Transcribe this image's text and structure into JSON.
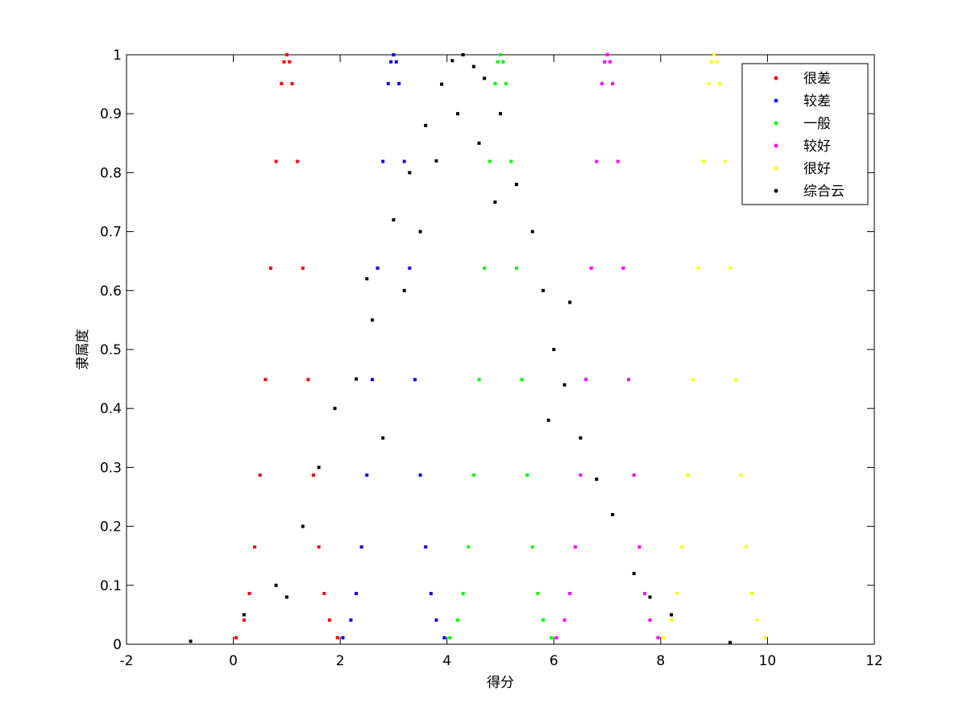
{
  "chart_data": {
    "type": "scatter",
    "xlabel": "得分",
    "ylabel": "隶属度",
    "xlim": [
      -2,
      12
    ],
    "ylim": [
      0,
      1
    ],
    "xticks": [
      -2,
      0,
      2,
      4,
      6,
      8,
      10,
      12
    ],
    "yticks": [
      0,
      0.1,
      0.2,
      0.3,
      0.4,
      0.5,
      0.6,
      0.7,
      0.8,
      0.9,
      1
    ],
    "legend": "upper right",
    "series": [
      {
        "name": "很差",
        "color": "#ff0000",
        "x": [
          0.05,
          0.2,
          0.3,
          0.4,
          0.5,
          0.6,
          0.7,
          0.8,
          0.9,
          0.95,
          1,
          1.05,
          1.1,
          1.2,
          1.3,
          1.4,
          1.5,
          1.6,
          1.7,
          1.8,
          1.95
        ],
        "values": [
          0.011,
          0.041,
          0.086,
          0.165,
          0.287,
          0.449,
          0.638,
          0.819,
          0.951,
          0.988,
          1,
          0.988,
          0.951,
          0.819,
          0.638,
          0.449,
          0.287,
          0.165,
          0.086,
          0.041,
          0.011
        ]
      },
      {
        "name": "较差",
        "color": "#0000ff",
        "x": [
          2.05,
          2.2,
          2.3,
          2.4,
          2.5,
          2.6,
          2.7,
          2.8,
          2.9,
          2.95,
          3,
          3.05,
          3.1,
          3.2,
          3.3,
          3.4,
          3.5,
          3.6,
          3.7,
          3.8,
          3.95
        ],
        "values": [
          0.011,
          0.041,
          0.086,
          0.165,
          0.287,
          0.449,
          0.638,
          0.819,
          0.951,
          0.988,
          1,
          0.988,
          0.951,
          0.819,
          0.638,
          0.449,
          0.287,
          0.165,
          0.086,
          0.041,
          0.011
        ]
      },
      {
        "name": "一般",
        "color": "#00ff00",
        "x": [
          4.05,
          4.2,
          4.3,
          4.4,
          4.5,
          4.6,
          4.7,
          4.8,
          4.9,
          4.95,
          5,
          5.05,
          5.1,
          5.2,
          5.3,
          5.4,
          5.5,
          5.6,
          5.7,
          5.8,
          5.95
        ],
        "values": [
          0.011,
          0.041,
          0.086,
          0.165,
          0.287,
          0.449,
          0.638,
          0.819,
          0.951,
          0.988,
          1,
          0.988,
          0.951,
          0.819,
          0.638,
          0.449,
          0.287,
          0.165,
          0.086,
          0.041,
          0.011
        ]
      },
      {
        "name": "较好",
        "color": "#ff00ff",
        "x": [
          6.05,
          6.2,
          6.3,
          6.4,
          6.5,
          6.6,
          6.7,
          6.8,
          6.9,
          6.95,
          7,
          7.05,
          7.1,
          7.2,
          7.3,
          7.4,
          7.5,
          7.6,
          7.7,
          7.8,
          7.95
        ],
        "values": [
          0.011,
          0.041,
          0.086,
          0.165,
          0.287,
          0.449,
          0.638,
          0.819,
          0.951,
          0.988,
          1,
          0.988,
          0.951,
          0.819,
          0.638,
          0.449,
          0.287,
          0.165,
          0.086,
          0.041,
          0.011
        ]
      },
      {
        "name": "很好",
        "color": "#ffff00",
        "x": [
          8.05,
          8.2,
          8.3,
          8.4,
          8.5,
          8.6,
          8.7,
          8.8,
          8.9,
          8.95,
          9,
          9.05,
          9.1,
          9.2,
          9.3,
          9.4,
          9.5,
          9.6,
          9.7,
          9.8,
          9.95
        ],
        "values": [
          0.011,
          0.041,
          0.086,
          0.165,
          0.287,
          0.449,
          0.638,
          0.819,
          0.951,
          0.988,
          1,
          0.988,
          0.951,
          0.819,
          0.638,
          0.449,
          0.287,
          0.165,
          0.086,
          0.041,
          0.011
        ]
      },
      {
        "name": "综合云",
        "color": "#000000",
        "x": [
          4.3,
          4.1,
          4.5,
          3.9,
          4.7,
          3.6,
          5.0,
          3.3,
          5.3,
          3.0,
          5.6,
          3.2,
          5.8,
          2.6,
          6.0,
          2.3,
          6.2,
          1.9,
          6.5,
          1.6,
          6.8,
          2.8,
          5.9,
          1.3,
          7.1,
          0.8,
          7.5,
          0.2,
          8.2,
          -0.8,
          9.3,
          3.5,
          4.9,
          2.5,
          6.3,
          1.0,
          7.8,
          4.2,
          4.6,
          3.8
        ],
        "values": [
          1.0,
          0.99,
          0.98,
          0.95,
          0.96,
          0.88,
          0.9,
          0.8,
          0.78,
          0.72,
          0.7,
          0.6,
          0.6,
          0.55,
          0.5,
          0.45,
          0.44,
          0.4,
          0.35,
          0.3,
          0.28,
          0.35,
          0.38,
          0.2,
          0.22,
          0.1,
          0.12,
          0.05,
          0.05,
          0.005,
          0.003,
          0.7,
          0.75,
          0.62,
          0.58,
          0.08,
          0.08,
          0.9,
          0.85,
          0.82
        ]
      }
    ]
  }
}
